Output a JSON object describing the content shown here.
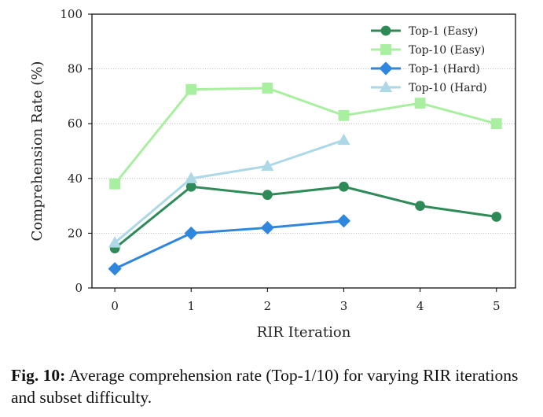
{
  "chart_data": {
    "type": "line",
    "title": "",
    "xlabel": "RIR Iteration",
    "ylabel": "Comprehension Rate (%)",
    "x_ticks": [
      "0",
      "1",
      "2",
      "3",
      "4",
      "5"
    ],
    "y_ticks": [
      "0",
      "20",
      "40",
      "60",
      "80",
      "100"
    ],
    "xlim": [
      -0.3,
      5.25
    ],
    "ylim": [
      0,
      100
    ],
    "grid": "horizontal dotted",
    "legend_position": "top-right",
    "series": [
      {
        "name": "Top-1 (Easy)",
        "marker": "circle",
        "color": "#2e8b57",
        "x": [
          0,
          1,
          2,
          3,
          4,
          5
        ],
        "values": [
          14.5,
          37.0,
          34.0,
          37.0,
          30.0,
          26.0
        ]
      },
      {
        "name": "Top-10 (Easy)",
        "marker": "square",
        "color": "#a8f0a0",
        "x": [
          0,
          1,
          2,
          3,
          4,
          5
        ],
        "values": [
          38.0,
          72.5,
          73.0,
          63.0,
          67.5,
          60.0
        ]
      },
      {
        "name": "Top-1 (Hard)",
        "marker": "diamond",
        "color": "#2e86de",
        "x": [
          0,
          1,
          2,
          3
        ],
        "values": [
          7.0,
          20.0,
          22.0,
          24.5
        ]
      },
      {
        "name": "Top-10 (Hard)",
        "marker": "triangle",
        "color": "#add8e6",
        "x": [
          0,
          1,
          2,
          3
        ],
        "values": [
          16.5,
          40.0,
          44.5,
          54.0
        ]
      }
    ]
  },
  "caption": {
    "label": "Fig. 10:",
    "text": " Average comprehension rate (Top-1/10) for varying RIR iterations and subset difficulty."
  }
}
